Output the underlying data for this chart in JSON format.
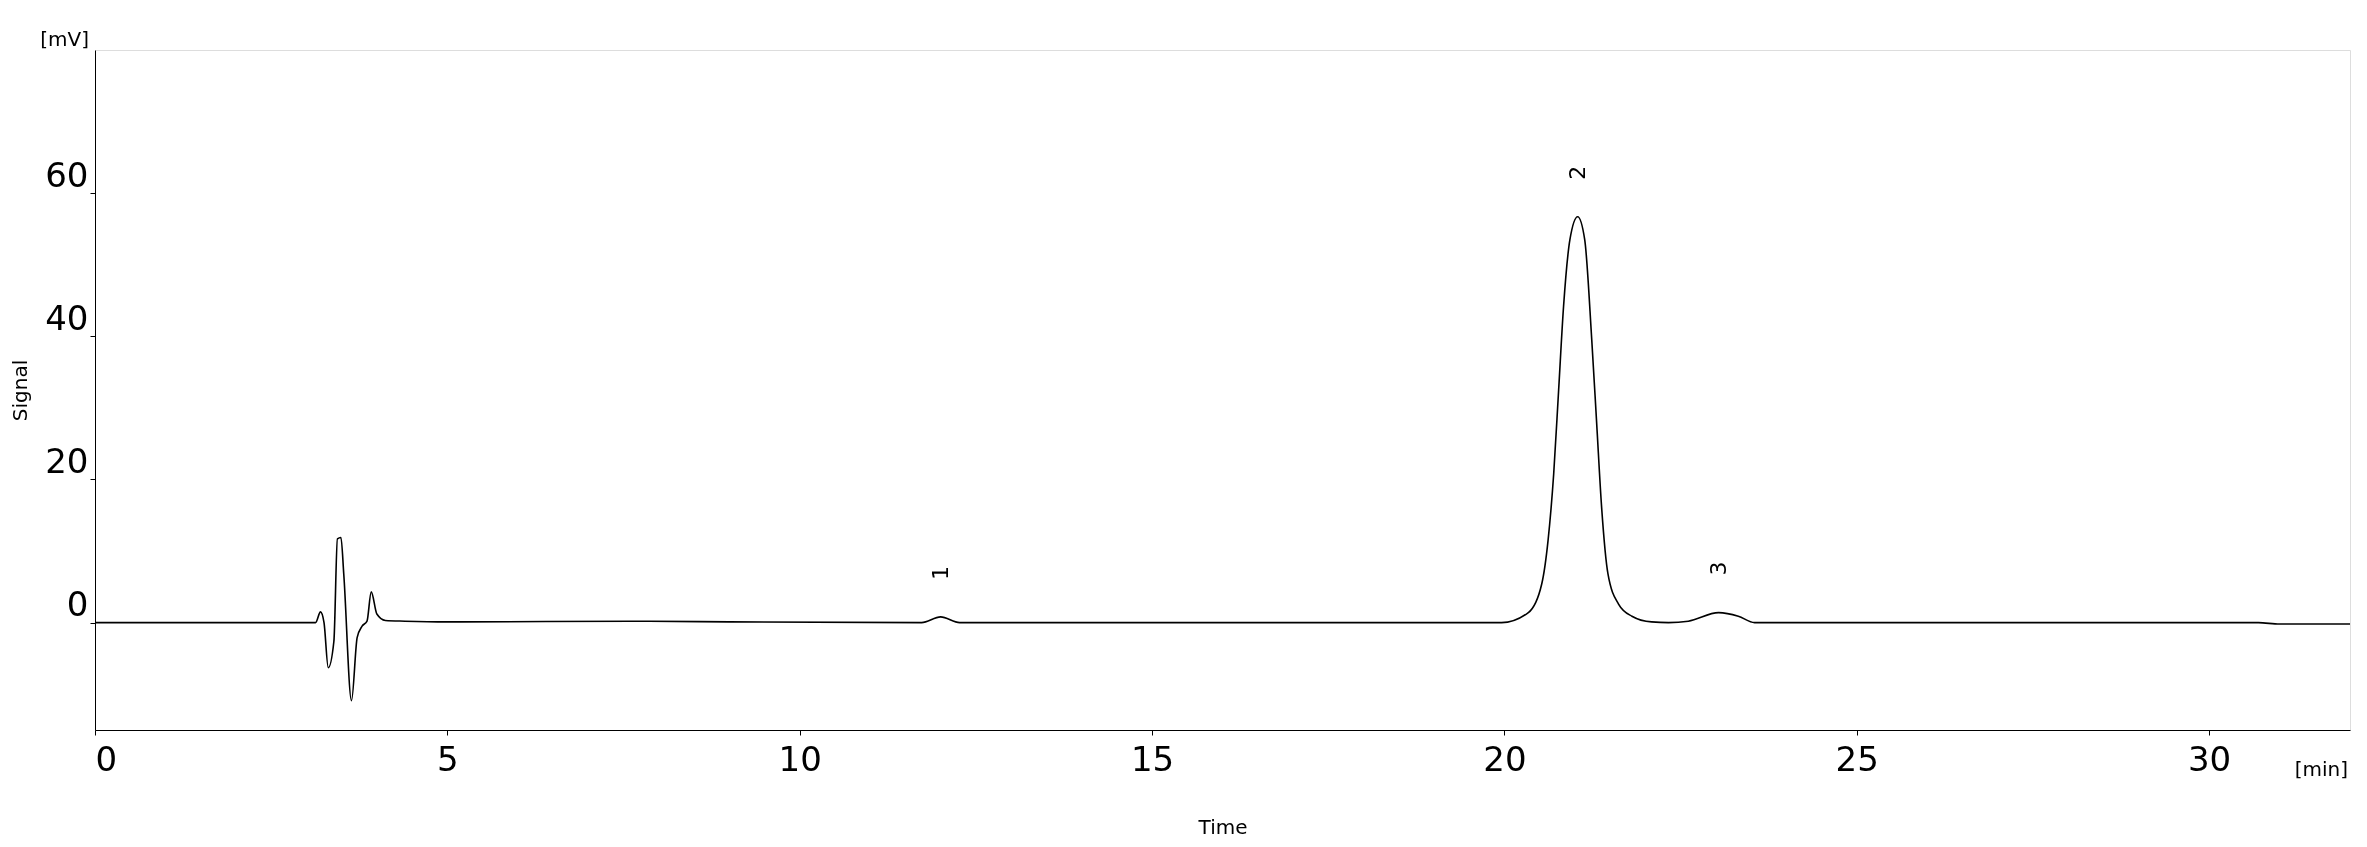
{
  "chart_data": {
    "type": "line",
    "xlabel": "Time",
    "ylabel": "Signal",
    "x": [
      0,
      3.13,
      3.2,
      3.25,
      3.31,
      3.39,
      3.44,
      3.49,
      3.53,
      3.64,
      3.72,
      3.79,
      3.86,
      3.92,
      4.0,
      4.12,
      4.4,
      5.0,
      7.8,
      9.0,
      11.73,
      12.0,
      12.27,
      15.0,
      19.96,
      20.34,
      20.53,
      20.62,
      20.7,
      20.77,
      20.84,
      20.93,
      21.04,
      21.14,
      21.24,
      21.31,
      21.38,
      21.47,
      21.62,
      21.81,
      22.09,
      22.33,
      22.61,
      23.04,
      23.32,
      23.55,
      30.7,
      31.0,
      32.0
    ],
    "values": [
      0,
      0,
      1.5,
      0,
      -6.3,
      -2.6,
      11.7,
      11.9,
      6.8,
      -10.9,
      -2.1,
      -0.5,
      0.2,
      4.3,
      1.2,
      0.3,
      0.2,
      0.1,
      0.2,
      0.1,
      0,
      0.8,
      0,
      0,
      0,
      1.4,
      5.4,
      11.5,
      20.8,
      32.5,
      44.2,
      53.5,
      56.7,
      53.5,
      39.5,
      27.8,
      16.1,
      6.8,
      2.6,
      0.9,
      0.1,
      0,
      0.2,
      1.4,
      0.9,
      0,
      0,
      -0.2,
      -0.2
    ],
    "color": "#000000",
    "xlim": [
      0,
      32
    ],
    "xticks": [
      0,
      5,
      10,
      15,
      20,
      25,
      30
    ],
    "ylim": [
      -15,
      80
    ],
    "yticks": [
      0,
      20,
      40,
      60
    ],
    "grid": false,
    "marker": "none",
    "line_style": "solid",
    "annotations": [
      "[mV]",
      "[min]",
      {
        "text": "1",
        "x": 12.0,
        "y": 0.8
      },
      {
        "text": "2",
        "x": 21.04,
        "y": 56.7
      },
      {
        "text": "3",
        "x": 23.04,
        "y": 1.4
      }
    ]
  }
}
